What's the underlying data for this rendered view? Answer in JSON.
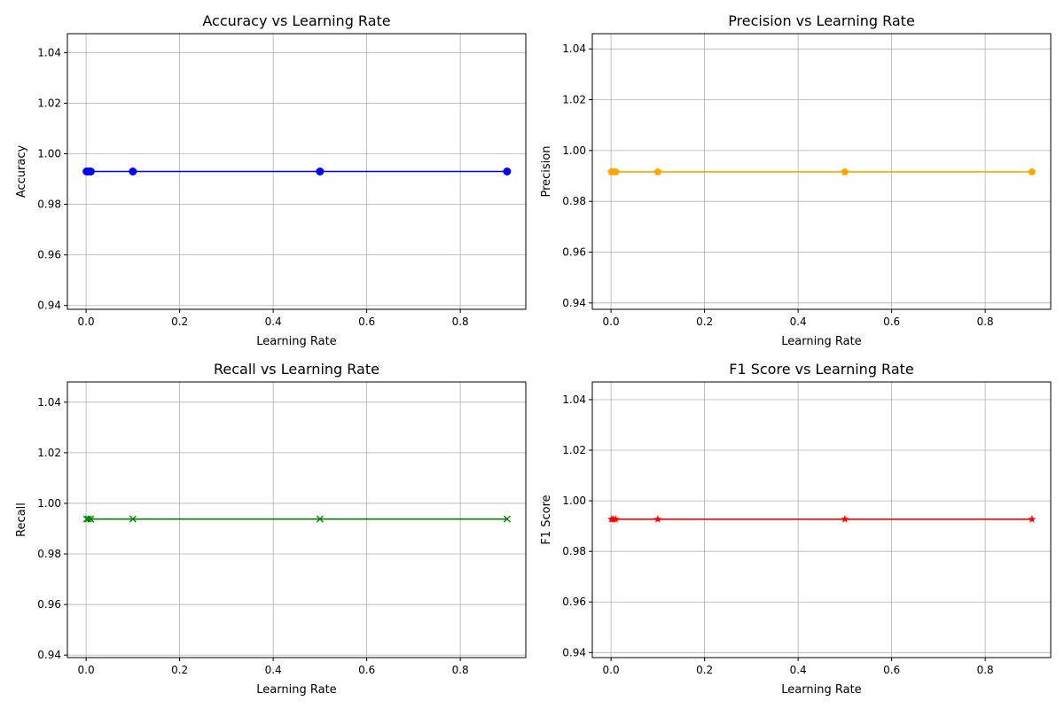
{
  "chart_data": [
    {
      "type": "line",
      "title": "Accuracy vs Learning Rate",
      "xlabel": "Learning Rate",
      "ylabel": "Accuracy",
      "x": [
        0.001,
        0.005,
        0.01,
        0.1,
        0.5,
        0.9
      ],
      "series": [
        {
          "values": [
            0.993,
            0.993,
            0.993,
            0.993,
            0.993,
            0.993
          ],
          "color": "#0000ff",
          "marker": "circle"
        }
      ],
      "xlim": [
        -0.04,
        0.94
      ],
      "ylim": [
        0.9385,
        1.0475
      ],
      "xticks": [
        0.0,
        0.2,
        0.4,
        0.6,
        0.8
      ],
      "xtick_labels": [
        "0.0",
        "0.2",
        "0.4",
        "0.6",
        "0.8"
      ],
      "yticks": [
        0.94,
        0.96,
        0.98,
        1.0,
        1.02,
        1.04
      ],
      "ytick_labels": [
        "0.94",
        "0.96",
        "0.98",
        "1.00",
        "1.02",
        "1.04"
      ],
      "grid": true
    },
    {
      "type": "line",
      "title": "Precision vs Learning Rate",
      "xlabel": "Learning Rate",
      "ylabel": "Precision",
      "x": [
        0.001,
        0.005,
        0.01,
        0.1,
        0.5,
        0.9
      ],
      "series": [
        {
          "values": [
            0.9916,
            0.9916,
            0.9916,
            0.9916,
            0.9916,
            0.9916
          ],
          "color": "#ffa500",
          "marker": "pentagon"
        }
      ],
      "xlim": [
        -0.04,
        0.94
      ],
      "ylim": [
        0.9375,
        1.046
      ],
      "xticks": [
        0.0,
        0.2,
        0.4,
        0.6,
        0.8
      ],
      "xtick_labels": [
        "0.0",
        "0.2",
        "0.4",
        "0.6",
        "0.8"
      ],
      "yticks": [
        0.94,
        0.96,
        0.98,
        1.0,
        1.02,
        1.04
      ],
      "ytick_labels": [
        "0.94",
        "0.96",
        "0.98",
        "1.00",
        "1.02",
        "1.04"
      ],
      "grid": true
    },
    {
      "type": "line",
      "title": "Recall vs Learning Rate",
      "xlabel": "Learning Rate",
      "ylabel": "Recall",
      "x": [
        0.001,
        0.005,
        0.01,
        0.1,
        0.5,
        0.9
      ],
      "series": [
        {
          "values": [
            0.9938,
            0.9938,
            0.9938,
            0.9938,
            0.9938,
            0.9938
          ],
          "color": "#008000",
          "marker": "x"
        }
      ],
      "xlim": [
        -0.04,
        0.94
      ],
      "ylim": [
        0.939,
        1.048
      ],
      "xticks": [
        0.0,
        0.2,
        0.4,
        0.6,
        0.8
      ],
      "xtick_labels": [
        "0.0",
        "0.2",
        "0.4",
        "0.6",
        "0.8"
      ],
      "yticks": [
        0.94,
        0.96,
        0.98,
        1.0,
        1.02,
        1.04
      ],
      "ytick_labels": [
        "0.94",
        "0.96",
        "0.98",
        "1.00",
        "1.02",
        "1.04"
      ],
      "grid": true
    },
    {
      "type": "line",
      "title": "F1 Score vs Learning Rate",
      "xlabel": "Learning Rate",
      "ylabel": "F1 Score",
      "x": [
        0.001,
        0.005,
        0.01,
        0.1,
        0.5,
        0.9
      ],
      "series": [
        {
          "values": [
            0.9927,
            0.9927,
            0.9927,
            0.9927,
            0.9927,
            0.9927
          ],
          "color": "#ff0000",
          "marker": "star"
        }
      ],
      "xlim": [
        -0.04,
        0.94
      ],
      "ylim": [
        0.938,
        1.047
      ],
      "xticks": [
        0.0,
        0.2,
        0.4,
        0.6,
        0.8
      ],
      "xtick_labels": [
        "0.0",
        "0.2",
        "0.4",
        "0.6",
        "0.8"
      ],
      "yticks": [
        0.94,
        0.96,
        0.98,
        1.0,
        1.02,
        1.04
      ],
      "ytick_labels": [
        "0.94",
        "0.96",
        "0.98",
        "1.00",
        "1.02",
        "1.04"
      ],
      "grid": true
    }
  ]
}
